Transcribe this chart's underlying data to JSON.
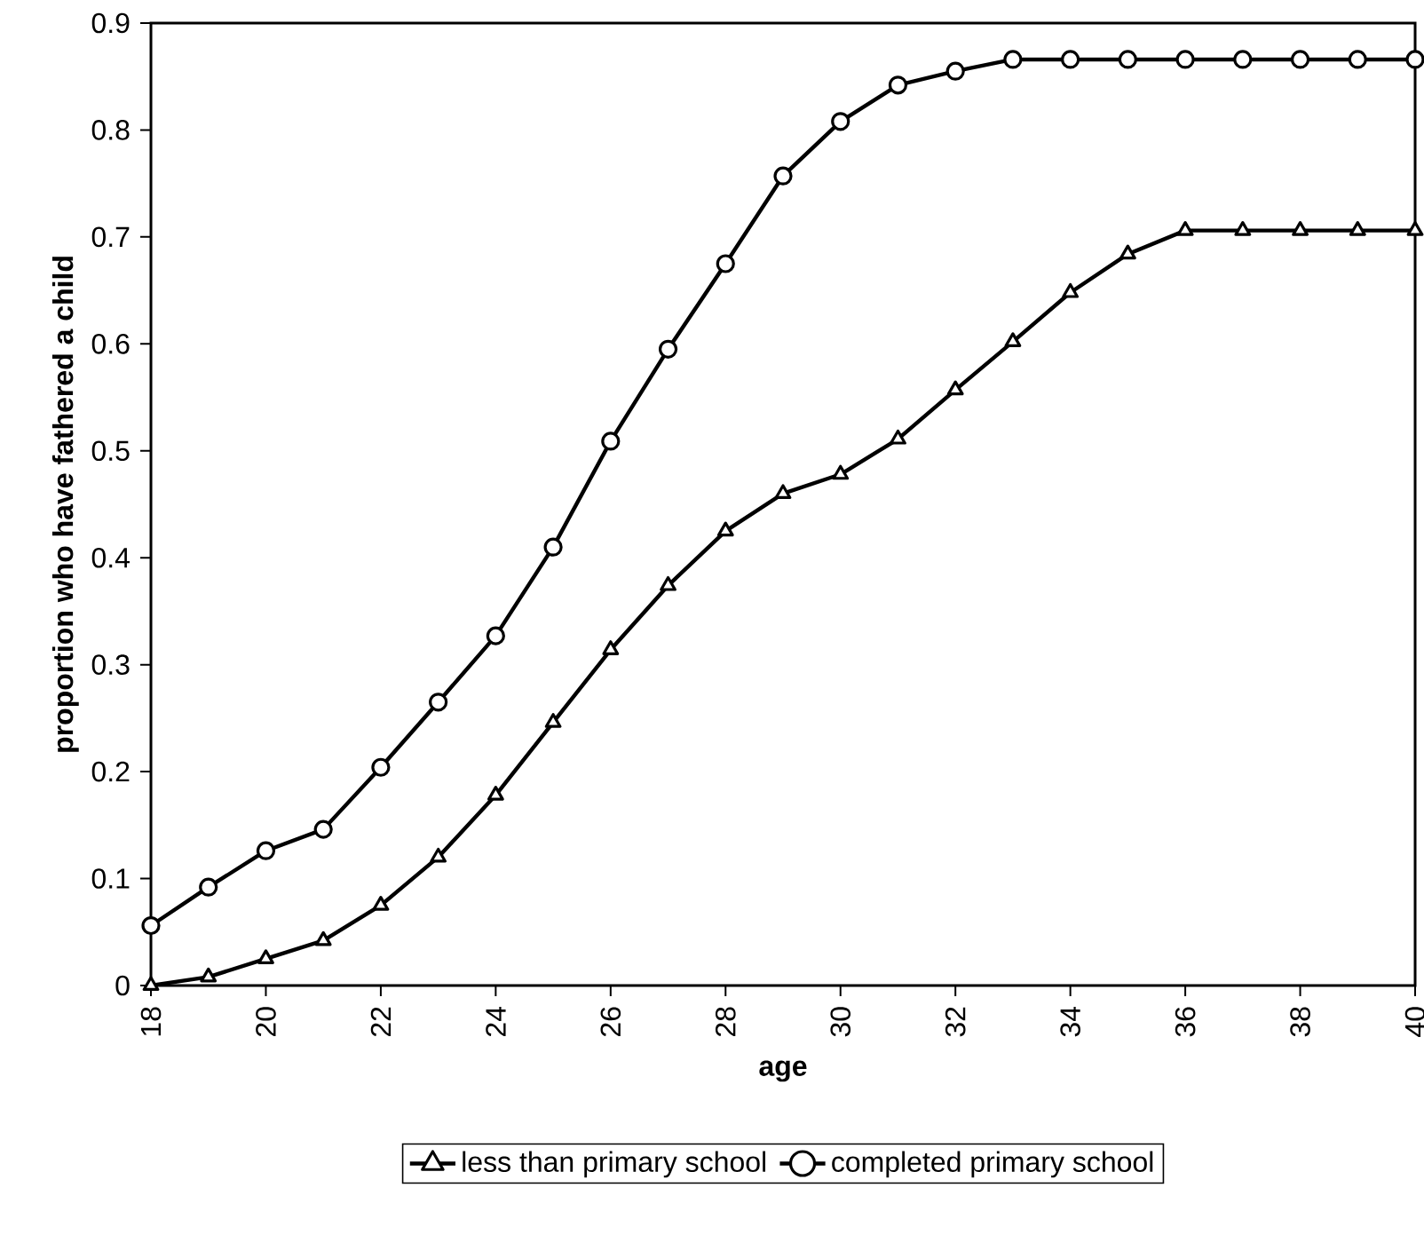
{
  "chart_data": {
    "type": "line",
    "xlabel": "age",
    "ylabel": "proportion who have fathered a child",
    "x": [
      18,
      19,
      20,
      21,
      22,
      23,
      24,
      25,
      26,
      27,
      28,
      29,
      30,
      31,
      32,
      33,
      34,
      35,
      36,
      37,
      38,
      39,
      40
    ],
    "series": [
      {
        "name": "less than primary school",
        "color": "#000000",
        "marker": "triangle",
        "values": [
          0,
          0.008,
          0.025,
          0.042,
          0.075,
          0.12,
          0.178,
          0.246,
          0.314,
          0.374,
          0.425,
          0.46,
          0.478,
          0.511,
          0.557,
          0.602,
          0.648,
          0.684,
          0.706,
          0.706,
          0.706,
          0.706,
          0.706
        ]
      },
      {
        "name": "completed primary school",
        "color": "#000000",
        "marker": "circle",
        "values": [
          0.056,
          0.092,
          0.126,
          0.146,
          0.204,
          0.265,
          0.327,
          0.41,
          0.509,
          0.595,
          0.675,
          0.757,
          0.808,
          0.842,
          0.855,
          0.866,
          0.866,
          0.866,
          0.866,
          0.866,
          0.866,
          0.866,
          0.866
        ]
      }
    ],
    "xlim": [
      18,
      40
    ],
    "xticks": [
      18,
      20,
      22,
      24,
      26,
      28,
      30,
      32,
      34,
      36,
      38,
      40
    ],
    "ylim": [
      0,
      0.9
    ],
    "yticks": [
      0,
      0.1,
      0.2,
      0.3,
      0.4,
      0.5,
      0.6,
      0.7,
      0.8,
      0.9
    ],
    "grid": false,
    "legend": "bottom",
    "line_style": "solid"
  }
}
